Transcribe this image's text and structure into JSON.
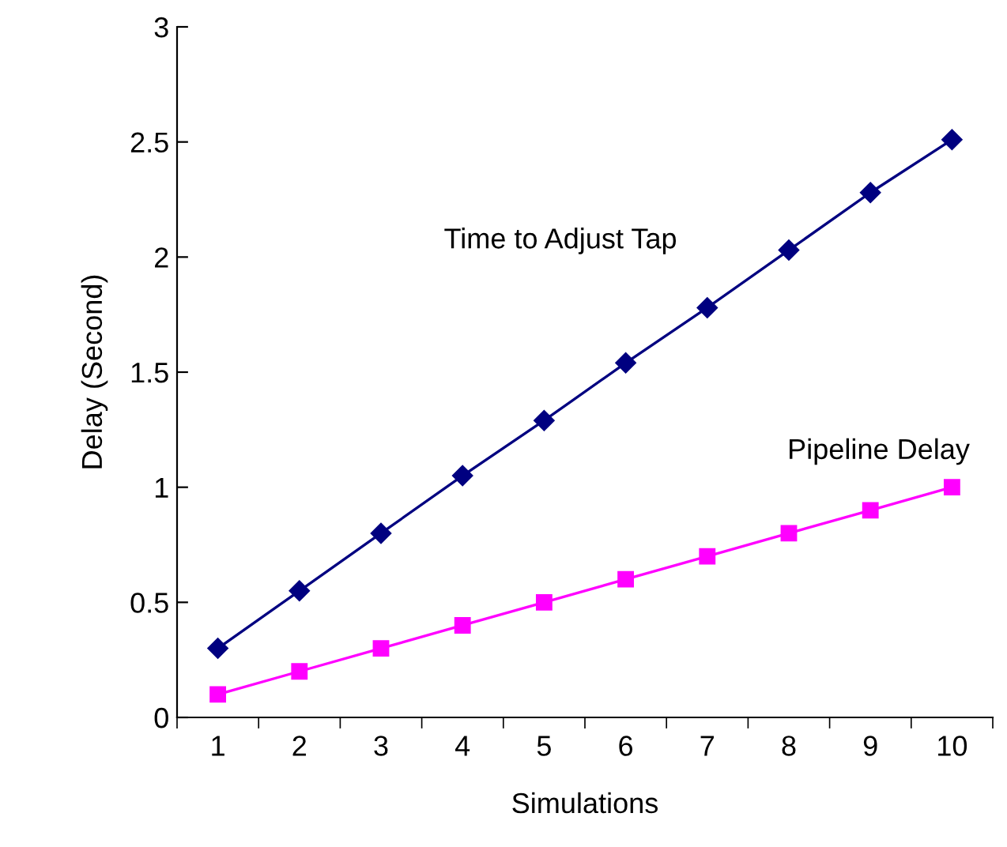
{
  "chart_data": {
    "type": "line",
    "xlabel": "Simulations",
    "ylabel": "Delay (Second)",
    "categories": [
      "1",
      "2",
      "3",
      "4",
      "5",
      "6",
      "7",
      "8",
      "9",
      "10"
    ],
    "series": [
      {
        "name": "Time to Adjust Tap",
        "color": "#000080",
        "marker": "diamond",
        "values": [
          0.3,
          0.55,
          0.8,
          1.05,
          1.29,
          1.54,
          1.78,
          2.03,
          2.28,
          2.51
        ]
      },
      {
        "name": "Pipeline Delay",
        "color": "#ff00ff",
        "marker": "square",
        "values": [
          0.1,
          0.2,
          0.3,
          0.4,
          0.5,
          0.6,
          0.7,
          0.8,
          0.9,
          1.0
        ]
      }
    ],
    "ylim": [
      0,
      3
    ],
    "yticks": [
      0,
      0.5,
      1,
      1.5,
      2,
      2.5,
      3
    ],
    "grid": false,
    "legend": false,
    "line_style": "solid"
  }
}
